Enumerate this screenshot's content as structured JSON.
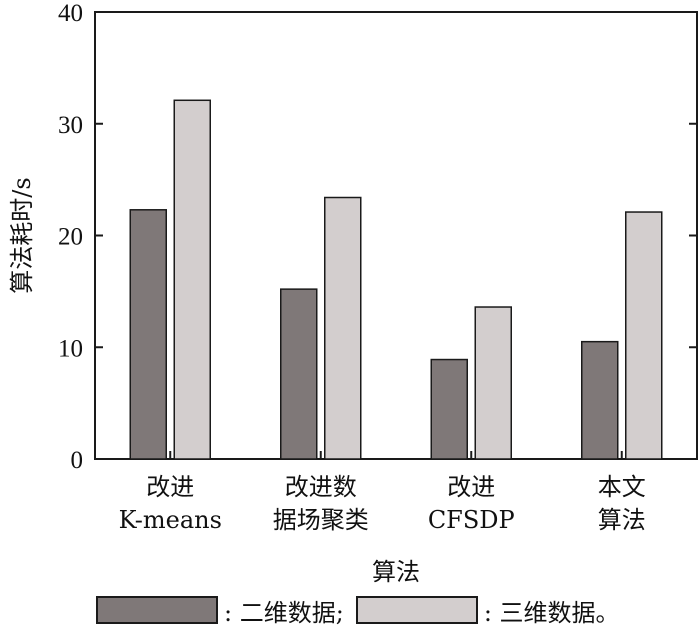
{
  "chart_data": {
    "type": "bar",
    "categories": [
      [
        "改进",
        "K-means"
      ],
      [
        "改进数",
        "据场聚类"
      ],
      [
        "改进",
        "CFSDP"
      ],
      [
        "本文",
        "算法"
      ]
    ],
    "series": [
      {
        "name": "二维数据",
        "values": [
          22.3,
          15.2,
          8.9,
          10.5
        ],
        "color": "#7f7878"
      },
      {
        "name": "三维数据",
        "values": [
          32.1,
          23.4,
          13.6,
          22.1
        ],
        "color": "#d3cece"
      }
    ],
    "xlabel": "算法",
    "ylabel": "算法耗时/s",
    "ylim": [
      0,
      40
    ],
    "yticks": [
      0,
      10,
      20,
      30,
      40
    ],
    "grid": false,
    "legend_position": "bottom"
  },
  "legend": {
    "items": [
      {
        "label": ": 二维数据;",
        "color": "#7f7878"
      },
      {
        "label": ": 三维数据。",
        "color": "#d3cece"
      }
    ]
  }
}
